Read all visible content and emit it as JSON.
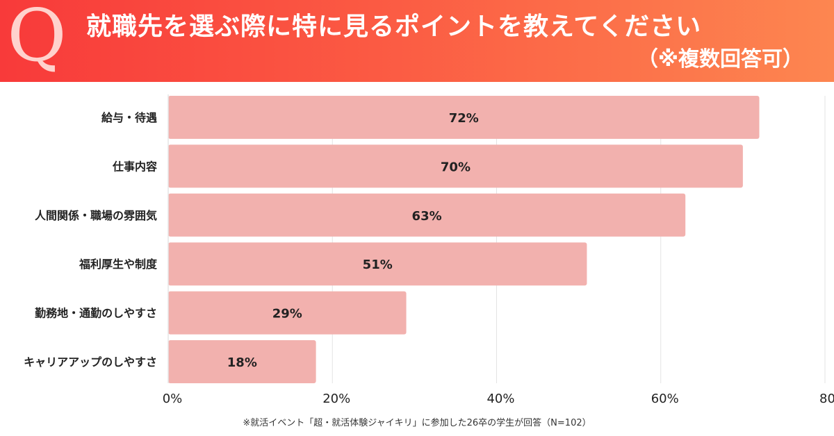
{
  "header": {
    "q_mark": "Q",
    "title": "就職先を選ぶ際に特に見るポイントを教えてください",
    "subtitle": "（※複数回答可）"
  },
  "colors": {
    "banner_start": "#f83a3a",
    "banner_end": "#fd8650",
    "bar_fill": "#f2b1ae",
    "grid": "#e3e3e3"
  },
  "chart_data": {
    "type": "bar",
    "orientation": "horizontal",
    "categories": [
      "給与・待遇",
      "仕事内容",
      "人間関係・職場の雰囲気",
      "福利厚生や制度",
      "勤務地・通勤のしやすさ",
      "キャリアアップのしやすさ"
    ],
    "values": [
      72,
      70,
      63,
      51,
      29,
      18
    ],
    "value_labels": [
      "72%",
      "70%",
      "63%",
      "51%",
      "29%",
      "18%"
    ],
    "xlim": [
      0,
      80
    ],
    "xticks": [
      0,
      20,
      40,
      60,
      80
    ],
    "xtick_labels": [
      "0%",
      "20%",
      "40%",
      "60%",
      "80"
    ],
    "grid": true
  },
  "footnote": "※就活イベント「超・就活体験ジャイキリ」に参加した26卒の学生が回答（N=102）"
}
